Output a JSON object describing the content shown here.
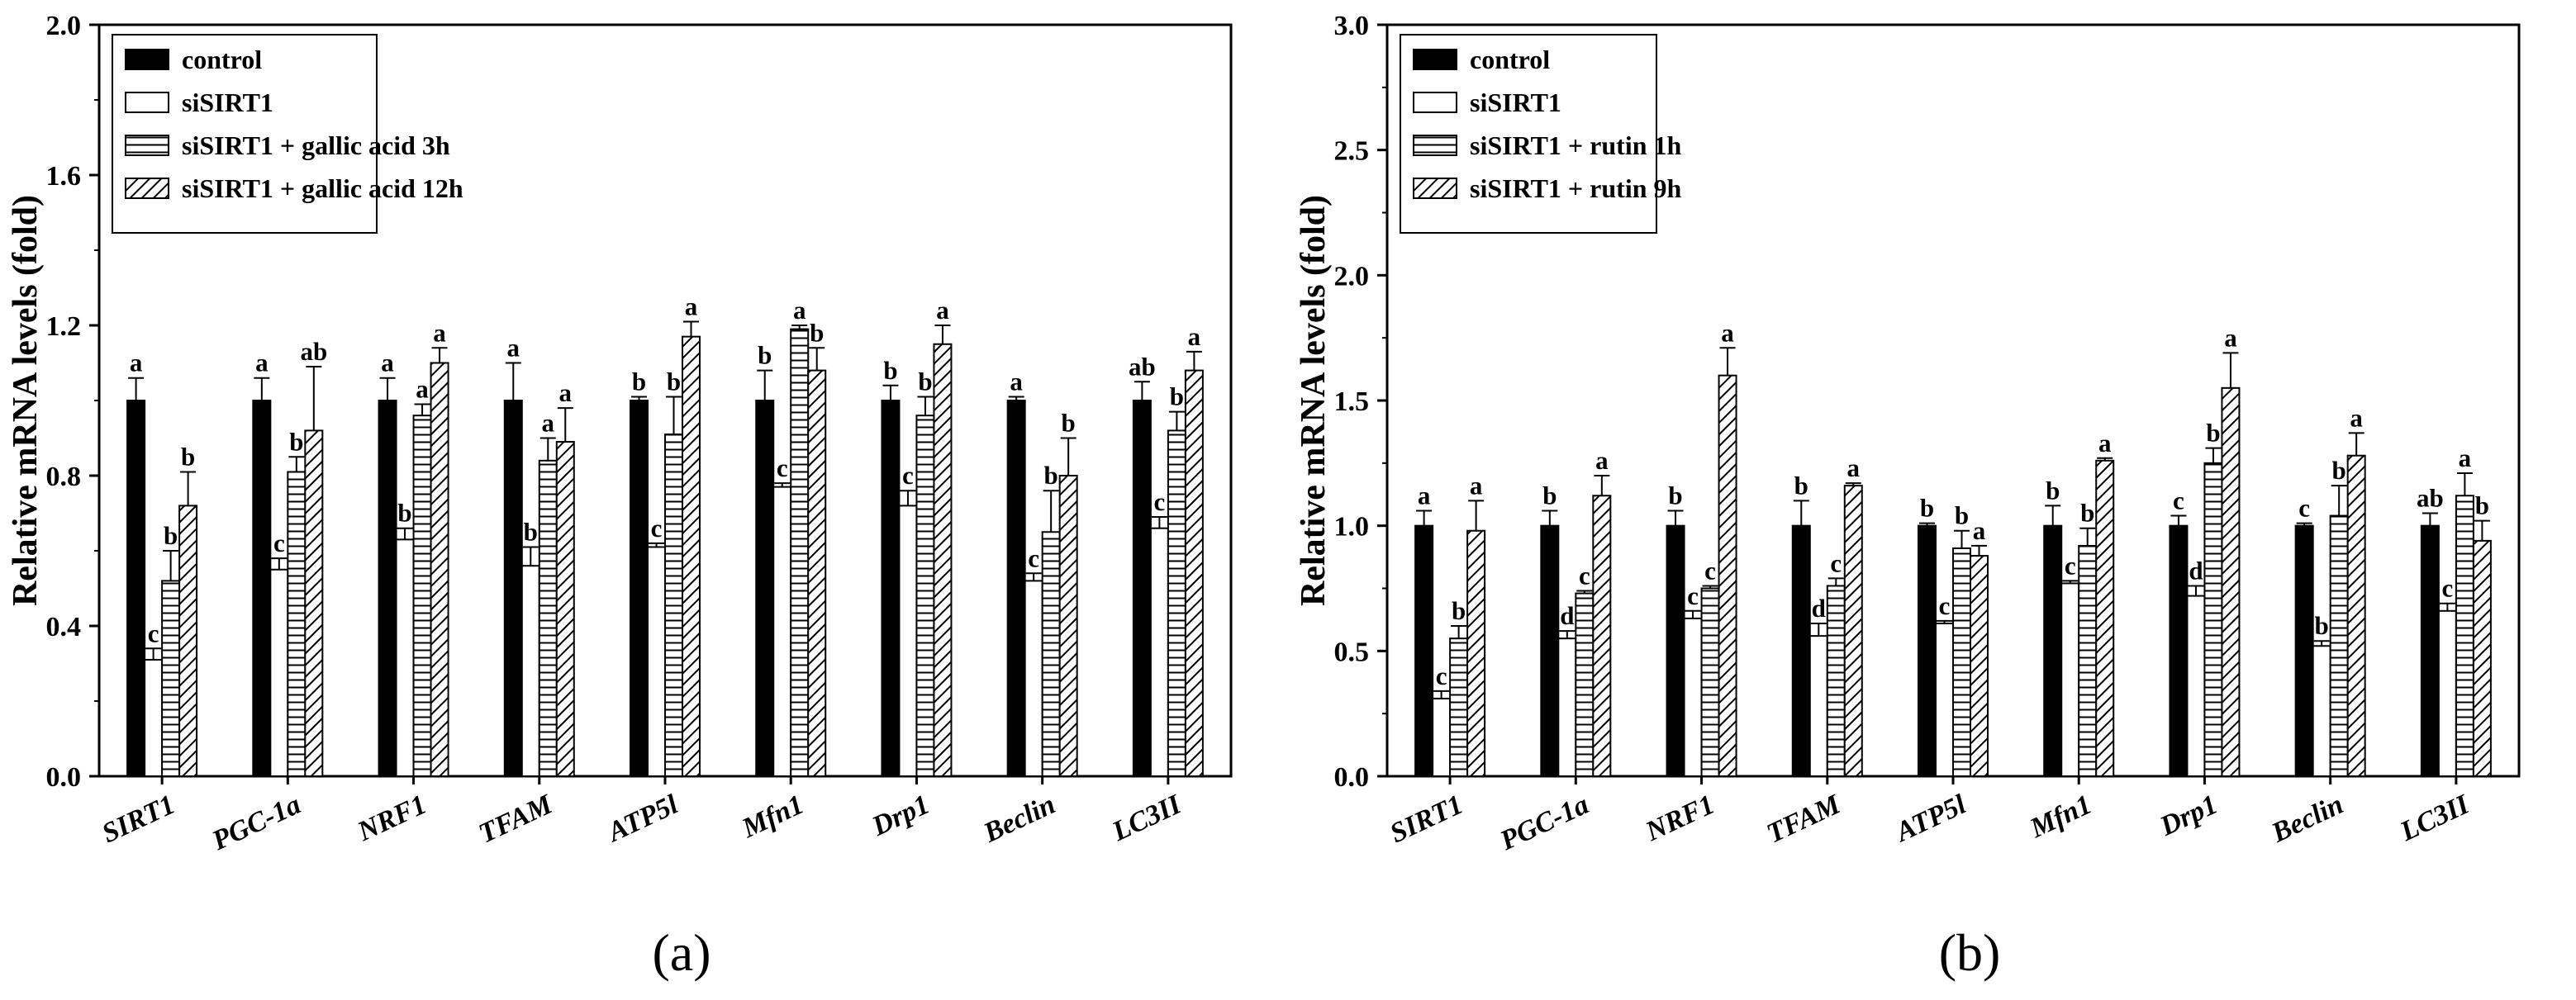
{
  "chart_data": [
    {
      "type": "bar",
      "panel_label": "(a)",
      "ylabel": "Relative mRNA levels (fold)",
      "ylim": [
        0,
        2.0
      ],
      "yticks": [
        "0.0",
        "0.4",
        "0.8",
        "1.2",
        "1.6",
        "2.0"
      ],
      "categories": [
        "SIRT1",
        "PGC-1a",
        "NRF1",
        "TFAM",
        "ATP5l",
        "Mfn1",
        "Drp1",
        "Beclin",
        "LC3II"
      ],
      "legend_position": "top-left",
      "series": [
        {
          "name": "control",
          "pattern": "solid",
          "values": [
            1.0,
            1.0,
            1.0,
            1.0,
            1.0,
            1.0,
            1.0,
            1.0,
            1.0
          ],
          "errors": [
            0.06,
            0.06,
            0.06,
            0.1,
            0.01,
            0.08,
            0.04,
            0.01,
            0.05
          ],
          "labels": [
            "a",
            "a",
            "a",
            "a",
            "b",
            "b",
            "b",
            "a",
            "ab"
          ]
        },
        {
          "name": "siSIRT1",
          "pattern": "open",
          "values": [
            0.31,
            0.55,
            0.63,
            0.56,
            0.61,
            0.77,
            0.72,
            0.52,
            0.66
          ],
          "errors": [
            0.03,
            0.03,
            0.03,
            0.05,
            0.01,
            0.01,
            0.04,
            0.02,
            0.03
          ],
          "labels": [
            "c",
            "c",
            "b",
            "b",
            "c",
            "c",
            "c",
            "c",
            "c"
          ]
        },
        {
          "name": "siSIRT1 + gallic acid 3h",
          "pattern": "horizontal",
          "values": [
            0.52,
            0.81,
            0.96,
            0.84,
            0.91,
            1.19,
            0.96,
            0.65,
            0.92
          ],
          "errors": [
            0.08,
            0.04,
            0.03,
            0.06,
            0.1,
            0.01,
            0.05,
            0.11,
            0.05
          ],
          "labels": [
            "b",
            "b",
            "a",
            "a",
            "b",
            "a",
            "b",
            "b",
            "b"
          ]
        },
        {
          "name": "siSIRT1 + gallic acid 12h",
          "pattern": "diagonal",
          "values": [
            0.72,
            0.92,
            1.1,
            0.89,
            1.17,
            1.08,
            1.15,
            0.8,
            1.08
          ],
          "errors": [
            0.09,
            0.17,
            0.04,
            0.09,
            0.04,
            0.06,
            0.05,
            0.1,
            0.05
          ],
          "labels": [
            "b",
            "ab",
            "a",
            "a",
            "a",
            "b",
            "a",
            "b",
            "a"
          ]
        }
      ]
    },
    {
      "type": "bar",
      "panel_label": "(b)",
      "ylabel": "Relative mRNA levels (fold)",
      "ylim": [
        0,
        3.0
      ],
      "yticks": [
        "0.0",
        "0.5",
        "1.0",
        "1.5",
        "2.0",
        "2.5",
        "3.0"
      ],
      "categories": [
        "SIRT1",
        "PGC-1a",
        "NRF1",
        "TFAM",
        "ATP5l",
        "Mfn1",
        "Drp1",
        "Beclin",
        "LC3II"
      ],
      "legend_position": "top-left",
      "series": [
        {
          "name": "control",
          "pattern": "solid",
          "values": [
            1.0,
            1.0,
            1.0,
            1.0,
            1.0,
            1.0,
            1.0,
            1.0,
            1.0
          ],
          "errors": [
            0.06,
            0.06,
            0.06,
            0.1,
            0.01,
            0.08,
            0.04,
            0.01,
            0.05
          ],
          "labels": [
            "a",
            "b",
            "b",
            "b",
            "b",
            "b",
            "c",
            "c",
            "ab"
          ]
        },
        {
          "name": "siSIRT1",
          "pattern": "open",
          "values": [
            0.31,
            0.55,
            0.63,
            0.56,
            0.61,
            0.77,
            0.72,
            0.52,
            0.66
          ],
          "errors": [
            0.03,
            0.03,
            0.03,
            0.05,
            0.01,
            0.01,
            0.04,
            0.02,
            0.03
          ],
          "labels": [
            "c",
            "d",
            "c",
            "d",
            "c",
            "c",
            "d",
            "b",
            "c"
          ]
        },
        {
          "name": "siSIRT1 + rutin 1h",
          "pattern": "horizontal",
          "values": [
            0.55,
            0.73,
            0.75,
            0.76,
            0.91,
            0.92,
            1.25,
            1.04,
            1.12
          ],
          "errors": [
            0.05,
            0.01,
            0.01,
            0.03,
            0.07,
            0.07,
            0.06,
            0.12,
            0.09
          ],
          "labels": [
            "b",
            "c",
            "c",
            "c",
            "b",
            "b",
            "b",
            "b",
            "a"
          ]
        },
        {
          "name": "siSIRT1 + rutin 9h",
          "pattern": "diagonal",
          "values": [
            0.98,
            1.12,
            1.6,
            1.16,
            0.88,
            1.26,
            1.55,
            1.28,
            0.94
          ],
          "errors": [
            0.12,
            0.08,
            0.11,
            0.01,
            0.04,
            0.01,
            0.14,
            0.09,
            0.08
          ],
          "labels": [
            "a",
            "a",
            "a",
            "a",
            "a",
            "a",
            "a",
            "a",
            "b"
          ]
        }
      ]
    }
  ]
}
